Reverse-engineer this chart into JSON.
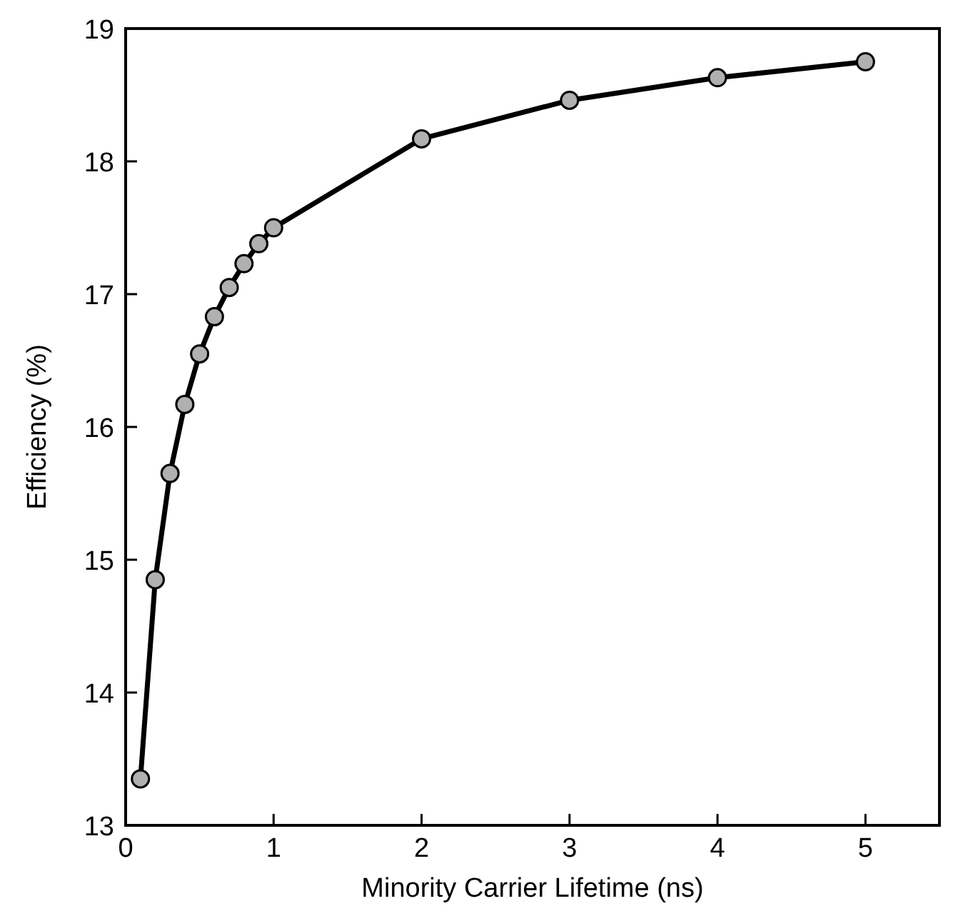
{
  "chart_data": {
    "type": "line",
    "xlabel": "Minority Carrier Lifetime (ns)",
    "ylabel": "Efficiency (%)",
    "x": [
      0.1,
      0.2,
      0.3,
      0.4,
      0.5,
      0.6,
      0.7,
      0.8,
      0.9,
      1,
      2,
      3,
      4,
      5
    ],
    "series": [
      {
        "color": "#000000",
        "values": [
          13.35,
          14.85,
          15.65,
          16.17,
          16.55,
          16.83,
          17.05,
          17.23,
          17.38,
          17.5,
          18.17,
          18.46,
          18.63,
          18.75
        ]
      }
    ],
    "xlim": [
      0,
      5.5
    ],
    "xticks": [
      0,
      1,
      2,
      3,
      4,
      5
    ],
    "ylim": [
      13,
      19
    ],
    "yticks": [
      13,
      14,
      15,
      16,
      17,
      18,
      19
    ],
    "marker": "circle",
    "line_style": "solid"
  }
}
